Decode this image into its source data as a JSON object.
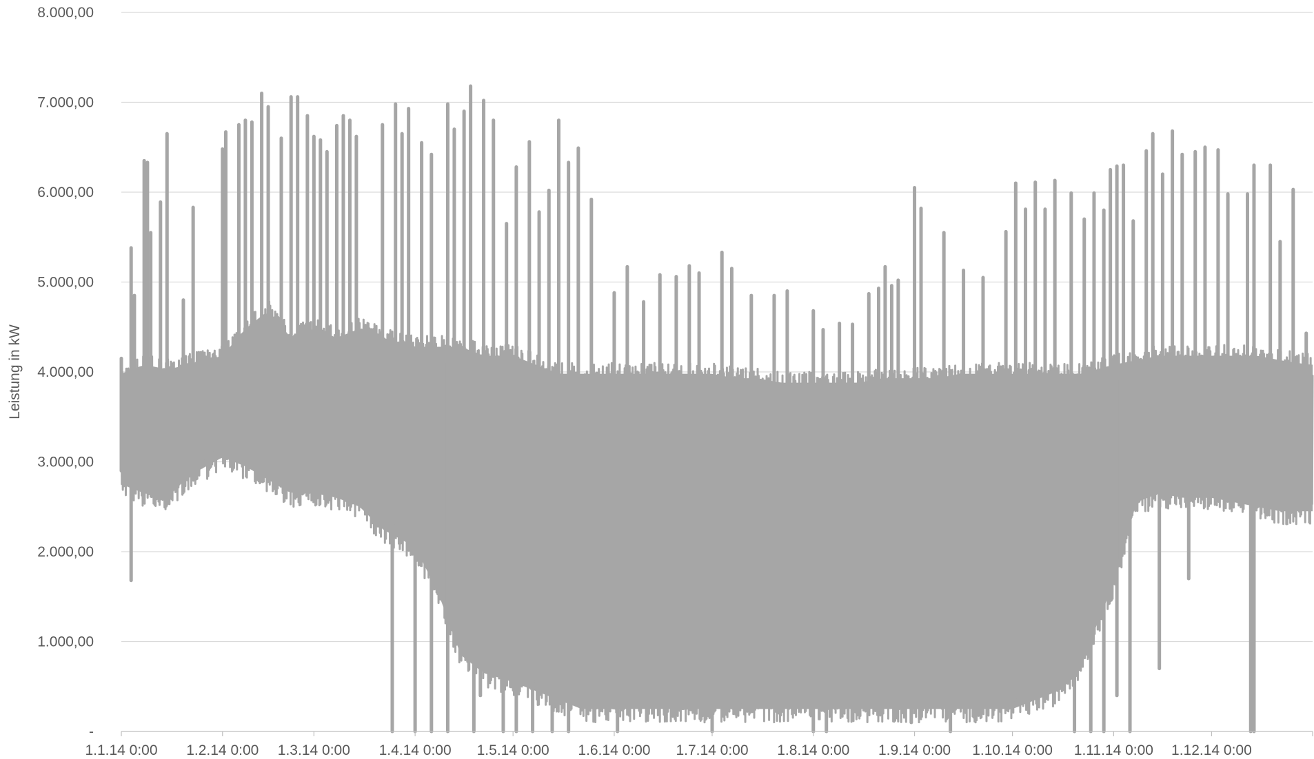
{
  "chart_data": {
    "type": "line",
    "title": "",
    "xlabel": "",
    "ylabel": "Leistung in kW",
    "ylim": [
      0,
      8000
    ],
    "xlim": [
      "2014-01-01",
      "2014-12-31"
    ],
    "grid": true,
    "y_ticks": [
      {
        "value": 0,
        "label": "-"
      },
      {
        "value": 1000,
        "label": "1.000,00"
      },
      {
        "value": 2000,
        "label": "2.000,00"
      },
      {
        "value": 3000,
        "label": "3.000,00"
      },
      {
        "value": 4000,
        "label": "4.000,00"
      },
      {
        "value": 5000,
        "label": "5.000,00"
      },
      {
        "value": 6000,
        "label": "6.000,00"
      },
      {
        "value": 7000,
        "label": "7.000,00"
      },
      {
        "value": 8000,
        "label": "8.000,00"
      }
    ],
    "x_ticks": [
      {
        "date": "2014-01-01",
        "label": "1.1.14 0:00"
      },
      {
        "date": "2014-02-01",
        "label": "1.2.14 0:00"
      },
      {
        "date": "2014-03-01",
        "label": "1.3.14 0:00"
      },
      {
        "date": "2014-04-01",
        "label": "1.4.14 0:00"
      },
      {
        "date": "2014-05-01",
        "label": "1.5.14 0:00"
      },
      {
        "date": "2014-06-01",
        "label": "1.6.14 0:00"
      },
      {
        "date": "2014-07-01",
        "label": "1.7.14 0:00"
      },
      {
        "date": "2014-08-01",
        "label": "1.8.14 0:00"
      },
      {
        "date": "2014-09-01",
        "label": "1.9.14 0:00"
      },
      {
        "date": "2014-10-01",
        "label": "1.10.14 0:00"
      },
      {
        "date": "2014-11-01",
        "label": "1.11.14 0:00"
      },
      {
        "date": "2014-12-01",
        "label": "1.12.14 0:00"
      }
    ],
    "series": [
      {
        "color": "#a6a6a6",
        "envelope": {
          "x": [
            "2014-01-01",
            "2014-01-08",
            "2014-01-15",
            "2014-01-22",
            "2014-02-01",
            "2014-02-08",
            "2014-02-15",
            "2014-02-22",
            "2014-03-01",
            "2014-03-08",
            "2014-03-15",
            "2014-03-22",
            "2014-04-01",
            "2014-04-08",
            "2014-04-15",
            "2014-04-22",
            "2014-05-01",
            "2014-05-08",
            "2014-05-15",
            "2014-05-22",
            "2014-06-01",
            "2014-06-08",
            "2014-06-15",
            "2014-06-22",
            "2014-07-01",
            "2014-07-08",
            "2014-07-15",
            "2014-07-22",
            "2014-08-01",
            "2014-08-08",
            "2014-08-15",
            "2014-08-22",
            "2014-09-01",
            "2014-09-08",
            "2014-09-15",
            "2014-09-22",
            "2014-10-01",
            "2014-10-08",
            "2014-10-15",
            "2014-10-22",
            "2014-11-01",
            "2014-11-08",
            "2014-11-15",
            "2014-11-22",
            "2014-12-01",
            "2014-12-08",
            "2014-12-15",
            "2014-12-22",
            "2014-12-31"
          ],
          "typical_high": [
            4100,
            4200,
            4150,
            4200,
            4300,
            4600,
            4800,
            4500,
            4600,
            4500,
            4600,
            4500,
            4400,
            4400,
            4400,
            4300,
            4300,
            4200,
            4100,
            4100,
            4100,
            4100,
            4100,
            4100,
            4100,
            4050,
            4050,
            4000,
            4000,
            4000,
            4000,
            4050,
            4050,
            4050,
            4100,
            4100,
            4100,
            4100,
            4100,
            4100,
            4200,
            4250,
            4300,
            4300,
            4300,
            4300,
            4300,
            4250,
            4200
          ],
          "typical_low": [
            2600,
            2500,
            2450,
            2700,
            2900,
            2800,
            2650,
            2500,
            2500,
            2450,
            2350,
            2100,
            1900,
            1400,
            700,
            500,
            400,
            300,
            200,
            100,
            100,
            100,
            100,
            100,
            100,
            100,
            100,
            100,
            100,
            100,
            100,
            100,
            100,
            100,
            100,
            100,
            100,
            200,
            300,
            600,
            1500,
            2400,
            2500,
            2450,
            2450,
            2400,
            2350,
            2300,
            2300
          ]
        },
        "peaks": [
          {
            "x": "2014-01-01",
            "y": 4150
          },
          {
            "x": "2014-01-04",
            "y": 5380
          },
          {
            "x": "2014-01-05",
            "y": 4850
          },
          {
            "x": "2014-01-08",
            "y": 6350
          },
          {
            "x": "2014-01-09",
            "y": 6330
          },
          {
            "x": "2014-01-10",
            "y": 5550
          },
          {
            "x": "2014-01-13",
            "y": 5890
          },
          {
            "x": "2014-01-15",
            "y": 6650
          },
          {
            "x": "2014-01-20",
            "y": 4800
          },
          {
            "x": "2014-01-23",
            "y": 5830
          },
          {
            "x": "2014-02-01",
            "y": 6480
          },
          {
            "x": "2014-02-02",
            "y": 6670
          },
          {
            "x": "2014-02-06",
            "y": 6750
          },
          {
            "x": "2014-02-08",
            "y": 6800
          },
          {
            "x": "2014-02-10",
            "y": 6780
          },
          {
            "x": "2014-02-13",
            "y": 7100
          },
          {
            "x": "2014-02-15",
            "y": 6950
          },
          {
            "x": "2014-02-19",
            "y": 6600
          },
          {
            "x": "2014-02-22",
            "y": 7060
          },
          {
            "x": "2014-02-24",
            "y": 7060
          },
          {
            "x": "2014-02-27",
            "y": 6850
          },
          {
            "x": "2014-03-01",
            "y": 6620
          },
          {
            "x": "2014-03-03",
            "y": 6580
          },
          {
            "x": "2014-03-05",
            "y": 6450
          },
          {
            "x": "2014-03-08",
            "y": 6740
          },
          {
            "x": "2014-03-10",
            "y": 6850
          },
          {
            "x": "2014-03-12",
            "y": 6800
          },
          {
            "x": "2014-03-14",
            "y": 6620
          },
          {
            "x": "2014-03-22",
            "y": 6750
          },
          {
            "x": "2014-03-26",
            "y": 6980
          },
          {
            "x": "2014-03-28",
            "y": 6650
          },
          {
            "x": "2014-03-30",
            "y": 6930
          },
          {
            "x": "2014-04-03",
            "y": 6550
          },
          {
            "x": "2014-04-06",
            "y": 6420
          },
          {
            "x": "2014-04-11",
            "y": 6980
          },
          {
            "x": "2014-04-13",
            "y": 6700
          },
          {
            "x": "2014-04-16",
            "y": 6900
          },
          {
            "x": "2014-04-18",
            "y": 7180
          },
          {
            "x": "2014-04-22",
            "y": 7020
          },
          {
            "x": "2014-04-25",
            "y": 6800
          },
          {
            "x": "2014-04-29",
            "y": 5650
          },
          {
            "x": "2014-05-02",
            "y": 6280
          },
          {
            "x": "2014-05-06",
            "y": 6560
          },
          {
            "x": "2014-05-09",
            "y": 5780
          },
          {
            "x": "2014-05-12",
            "y": 6020
          },
          {
            "x": "2014-05-15",
            "y": 6800
          },
          {
            "x": "2014-05-18",
            "y": 6330
          },
          {
            "x": "2014-05-21",
            "y": 6490
          },
          {
            "x": "2014-05-25",
            "y": 5920
          },
          {
            "x": "2014-06-01",
            "y": 4880
          },
          {
            "x": "2014-06-05",
            "y": 5170
          },
          {
            "x": "2014-06-10",
            "y": 4780
          },
          {
            "x": "2014-06-15",
            "y": 5080
          },
          {
            "x": "2014-06-20",
            "y": 5060
          },
          {
            "x": "2014-06-24",
            "y": 5180
          },
          {
            "x": "2014-06-27",
            "y": 5100
          },
          {
            "x": "2014-07-04",
            "y": 5330
          },
          {
            "x": "2014-07-07",
            "y": 5150
          },
          {
            "x": "2014-07-13",
            "y": 4850
          },
          {
            "x": "2014-07-20",
            "y": 4850
          },
          {
            "x": "2014-07-24",
            "y": 4900
          },
          {
            "x": "2014-08-01",
            "y": 4680
          },
          {
            "x": "2014-08-04",
            "y": 4470
          },
          {
            "x": "2014-08-09",
            "y": 4540
          },
          {
            "x": "2014-08-13",
            "y": 4530
          },
          {
            "x": "2014-08-18",
            "y": 4870
          },
          {
            "x": "2014-08-21",
            "y": 4930
          },
          {
            "x": "2014-08-23",
            "y": 5170
          },
          {
            "x": "2014-08-25",
            "y": 4960
          },
          {
            "x": "2014-08-27",
            "y": 5020
          },
          {
            "x": "2014-09-01",
            "y": 6050
          },
          {
            "x": "2014-09-03",
            "y": 5820
          },
          {
            "x": "2014-09-10",
            "y": 5550
          },
          {
            "x": "2014-09-16",
            "y": 5130
          },
          {
            "x": "2014-09-22",
            "y": 5050
          },
          {
            "x": "2014-09-29",
            "y": 5560
          },
          {
            "x": "2014-10-02",
            "y": 6100
          },
          {
            "x": "2014-10-05",
            "y": 5810
          },
          {
            "x": "2014-10-08",
            "y": 6110
          },
          {
            "x": "2014-10-11",
            "y": 5810
          },
          {
            "x": "2014-10-14",
            "y": 6130
          },
          {
            "x": "2014-10-19",
            "y": 5990
          },
          {
            "x": "2014-10-23",
            "y": 5700
          },
          {
            "x": "2014-10-26",
            "y": 5990
          },
          {
            "x": "2014-10-29",
            "y": 5800
          },
          {
            "x": "2014-10-31",
            "y": 6250
          },
          {
            "x": "2014-11-02",
            "y": 6290
          },
          {
            "x": "2014-11-04",
            "y": 6300
          },
          {
            "x": "2014-11-07",
            "y": 5680
          },
          {
            "x": "2014-11-11",
            "y": 6460
          },
          {
            "x": "2014-11-13",
            "y": 6650
          },
          {
            "x": "2014-11-16",
            "y": 6200
          },
          {
            "x": "2014-11-19",
            "y": 6680
          },
          {
            "x": "2014-11-22",
            "y": 6420
          },
          {
            "x": "2014-11-26",
            "y": 6450
          },
          {
            "x": "2014-11-29",
            "y": 6500
          },
          {
            "x": "2014-12-03",
            "y": 6470
          },
          {
            "x": "2014-12-06",
            "y": 5980
          },
          {
            "x": "2014-12-12",
            "y": 5980
          },
          {
            "x": "2014-12-14",
            "y": 6300
          },
          {
            "x": "2014-12-19",
            "y": 6300
          },
          {
            "x": "2014-12-22",
            "y": 5450
          },
          {
            "x": "2014-12-26",
            "y": 6030
          },
          {
            "x": "2014-12-30",
            "y": 4430
          }
        ],
        "troughs": [
          {
            "x": "2014-01-04",
            "y": 1680
          },
          {
            "x": "2014-03-25",
            "y": 0
          },
          {
            "x": "2014-04-01",
            "y": 0
          },
          {
            "x": "2014-04-06",
            "y": 0
          },
          {
            "x": "2014-04-11",
            "y": 0
          },
          {
            "x": "2014-04-19",
            "y": 0
          },
          {
            "x": "2014-04-21",
            "y": 400
          },
          {
            "x": "2014-04-28",
            "y": 0
          },
          {
            "x": "2014-05-02",
            "y": 0
          },
          {
            "x": "2014-05-07",
            "y": 0
          },
          {
            "x": "2014-05-13",
            "y": 0
          },
          {
            "x": "2014-05-18",
            "y": 0
          },
          {
            "x": "2014-06-02",
            "y": 0
          },
          {
            "x": "2014-07-01",
            "y": 0
          },
          {
            "x": "2014-08-01",
            "y": 0
          },
          {
            "x": "2014-08-05",
            "y": 0
          },
          {
            "x": "2014-08-31",
            "y": 100
          },
          {
            "x": "2014-09-12",
            "y": 0
          },
          {
            "x": "2014-10-20",
            "y": 0
          },
          {
            "x": "2014-10-25",
            "y": 0
          },
          {
            "x": "2014-10-29",
            "y": 0
          },
          {
            "x": "2014-11-02",
            "y": 400
          },
          {
            "x": "2014-11-06",
            "y": 0
          },
          {
            "x": "2014-11-15",
            "y": 700
          },
          {
            "x": "2014-11-24",
            "y": 1700
          },
          {
            "x": "2014-12-13",
            "y": 0
          },
          {
            "x": "2014-12-14",
            "y": 0
          }
        ]
      }
    ]
  }
}
